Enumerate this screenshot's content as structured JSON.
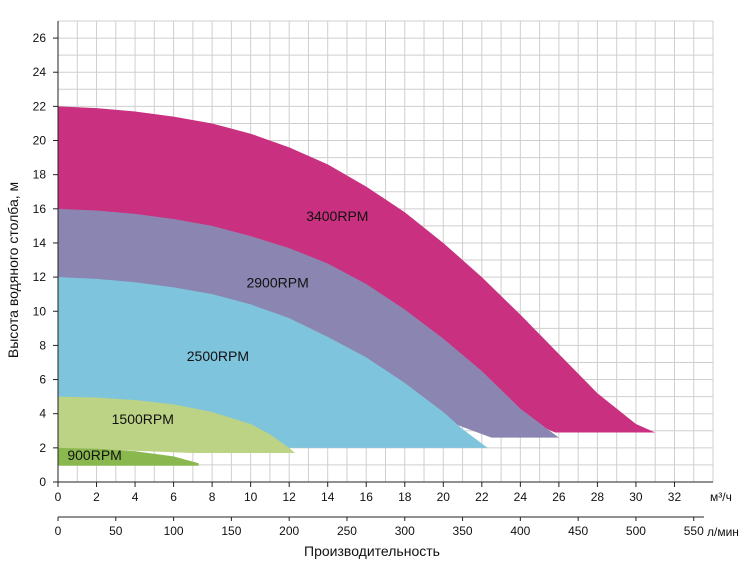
{
  "chart_data": {
    "type": "area",
    "xlabel": "Производительность",
    "ylabel": "Высота водяного столба, м",
    "ylim": [
      0,
      27
    ],
    "xlim_m3h": [
      0,
      34
    ],
    "x_unit_m3h": "м³/ч",
    "x_unit_lmin": "л/мин",
    "y_ticks": [
      0,
      2,
      4,
      6,
      8,
      10,
      12,
      14,
      16,
      18,
      20,
      22,
      24,
      26
    ],
    "x_ticks_m3h": [
      0,
      2,
      4,
      6,
      8,
      10,
      12,
      14,
      16,
      18,
      20,
      22,
      24,
      26,
      28,
      30,
      32
    ],
    "x_ticks_lmin": [
      0,
      50,
      100,
      150,
      200,
      250,
      300,
      350,
      400,
      450,
      500,
      550
    ],
    "grid": true,
    "series": [
      {
        "name": "3400RPM",
        "color": "#c9307f",
        "top": [
          [
            0,
            22
          ],
          [
            2,
            21.9
          ],
          [
            4,
            21.7
          ],
          [
            6,
            21.4
          ],
          [
            8,
            21.0
          ],
          [
            10,
            20.4
          ],
          [
            12,
            19.6
          ],
          [
            14,
            18.6
          ],
          [
            16,
            17.3
          ],
          [
            18,
            15.8
          ],
          [
            20,
            14.0
          ],
          [
            22,
            12.0
          ],
          [
            24,
            9.8
          ],
          [
            26,
            7.5
          ],
          [
            28,
            5.2
          ],
          [
            30,
            3.4
          ],
          [
            31,
            2.9
          ]
        ],
        "bottom": [
          [
            0,
            16
          ],
          [
            25.8,
            2.9
          ],
          [
            31,
            2.9
          ]
        ]
      },
      {
        "name": "2900RPM",
        "color": "#8b86b1",
        "top": [
          [
            0,
            16
          ],
          [
            2,
            15.9
          ],
          [
            4,
            15.7
          ],
          [
            6,
            15.4
          ],
          [
            8,
            15.0
          ],
          [
            10,
            14.4
          ],
          [
            12,
            13.7
          ],
          [
            14,
            12.8
          ],
          [
            16,
            11.6
          ],
          [
            18,
            10.1
          ],
          [
            20,
            8.4
          ],
          [
            22,
            6.5
          ],
          [
            24,
            4.3
          ],
          [
            26,
            2.6
          ]
        ],
        "bottom": [
          [
            0,
            12
          ],
          [
            22.5,
            2.6
          ],
          [
            26,
            2.6
          ]
        ]
      },
      {
        "name": "2500RPM",
        "color": "#7fc4dd",
        "top": [
          [
            0,
            12
          ],
          [
            2,
            11.9
          ],
          [
            4,
            11.7
          ],
          [
            6,
            11.4
          ],
          [
            8,
            11.0
          ],
          [
            10,
            10.4
          ],
          [
            12,
            9.6
          ],
          [
            14,
            8.5
          ],
          [
            16,
            7.3
          ],
          [
            18,
            5.8
          ],
          [
            20,
            4.1
          ],
          [
            21,
            3.1
          ],
          [
            22.3,
            2.0
          ]
        ],
        "bottom": [
          [
            0,
            5
          ],
          [
            12,
            2.0
          ],
          [
            22.3,
            2.0
          ]
        ]
      },
      {
        "name": "1500RPM",
        "color": "#bcd285",
        "top": [
          [
            0,
            5
          ],
          [
            2,
            4.95
          ],
          [
            4,
            4.8
          ],
          [
            6,
            4.55
          ],
          [
            8,
            4.1
          ],
          [
            10,
            3.4
          ],
          [
            11,
            2.8
          ],
          [
            12,
            2.0
          ],
          [
            12.3,
            1.7
          ]
        ],
        "bottom": [
          [
            0,
            2
          ],
          [
            7,
            1.7
          ],
          [
            12.3,
            1.7
          ]
        ]
      },
      {
        "name": "900RPM",
        "color": "#8ab84f",
        "top": [
          [
            0,
            2
          ],
          [
            2,
            1.95
          ],
          [
            4,
            1.8
          ],
          [
            6,
            1.5
          ],
          [
            7.3,
            1.1
          ]
        ],
        "bottom": [
          [
            0,
            0.95
          ],
          [
            7.3,
            0.95
          ]
        ]
      }
    ],
    "labels": [
      {
        "text": "3400RPM",
        "x": 14.5,
        "y": 15.3
      },
      {
        "text": "2900RPM",
        "x": 11.4,
        "y": 11.4
      },
      {
        "text": "2500RPM",
        "x": 8.3,
        "y": 7.1
      },
      {
        "text": "1500RPM",
        "x": 4.4,
        "y": 3.4
      },
      {
        "text": "900RPM",
        "x": 1.9,
        "y": 1.3
      }
    ]
  }
}
